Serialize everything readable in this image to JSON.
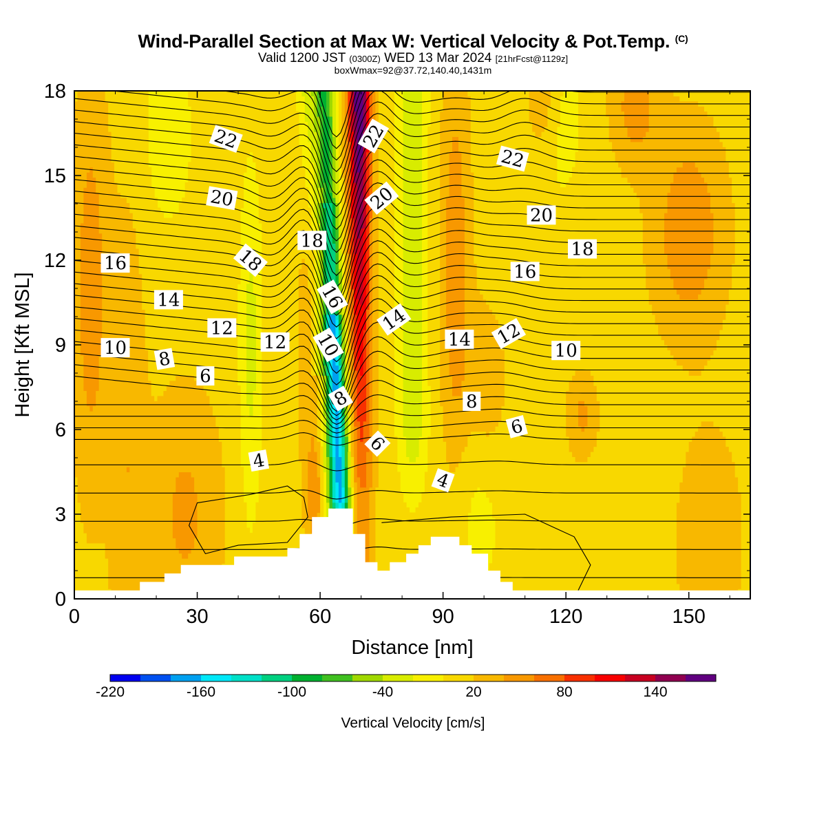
{
  "header": {
    "title": "Wind-Parallel Section at Max W: Vertical Velocity & Pot.Temp.",
    "title_mark": "(C)",
    "valid_prefix": "Valid 1200 JST",
    "valid_utc": "(0300Z)",
    "valid_date": "WED 13 Mar 2024",
    "forecast": "[21hrFcst@1129z]",
    "box_info": "boxWmax=92@37.72,140.40,1431m"
  },
  "chart_data": {
    "type": "heatmap",
    "title": "Wind-Parallel Section at Max W: Vertical Velocity & Pot.Temp.",
    "xlabel": "Distance [nm]",
    "ylabel": "Height [Kft MSL]",
    "xlim": [
      0,
      165
    ],
    "ylim": [
      0,
      18
    ],
    "x_ticks": [
      0,
      30,
      60,
      90,
      120,
      150
    ],
    "y_ticks": [
      0,
      3,
      6,
      9,
      12,
      15,
      18
    ],
    "colorbar": {
      "label": "Vertical Velocity [cm/s]",
      "tick_values": [
        -220,
        -160,
        -100,
        -40,
        20,
        80,
        140
      ],
      "bins": [
        -220,
        -200,
        -180,
        -160,
        -140,
        -120,
        -100,
        -80,
        -60,
        -40,
        -20,
        0,
        20,
        40,
        60,
        80,
        100,
        120,
        140,
        160,
        180
      ],
      "colors": [
        "#0000f0",
        "#0050f0",
        "#00a0f0",
        "#00e8f8",
        "#00e0c8",
        "#00d080",
        "#00b030",
        "#40c020",
        "#a0d800",
        "#d8ec00",
        "#f8f000",
        "#f8d800",
        "#f8b800",
        "#f89800",
        "#f87000",
        "#f83000",
        "#f80000",
        "#c80020",
        "#900050",
        "#600080"
      ]
    },
    "terrain_profile": [
      [
        0,
        0.3
      ],
      [
        16,
        0.3
      ],
      [
        16,
        0.6
      ],
      [
        22,
        0.6
      ],
      [
        22,
        0.9
      ],
      [
        26,
        0.9
      ],
      [
        26,
        1.2
      ],
      [
        39,
        1.2
      ],
      [
        39,
        1.5
      ],
      [
        52,
        1.5
      ],
      [
        52,
        1.8
      ],
      [
        55,
        1.8
      ],
      [
        55,
        2.3
      ],
      [
        58,
        2.3
      ],
      [
        58,
        2.9
      ],
      [
        62,
        2.9
      ],
      [
        62,
        3.2
      ],
      [
        68,
        3.2
      ],
      [
        68,
        2.3
      ],
      [
        71,
        2.3
      ],
      [
        71,
        1.3
      ],
      [
        74,
        1.3
      ],
      [
        74,
        1.0
      ],
      [
        77,
        1.0
      ],
      [
        77,
        1.3
      ],
      [
        81,
        1.3
      ],
      [
        81,
        1.6
      ],
      [
        84,
        1.6
      ],
      [
        84,
        1.9
      ],
      [
        87,
        1.9
      ],
      [
        87,
        2.2
      ],
      [
        94,
        2.2
      ],
      [
        94,
        1.9
      ],
      [
        97,
        1.9
      ],
      [
        97,
        1.6
      ],
      [
        101,
        1.6
      ],
      [
        101,
        1.0
      ],
      [
        104,
        1.0
      ],
      [
        104,
        0.6
      ],
      [
        107,
        0.6
      ],
      [
        107,
        0.3
      ],
      [
        165,
        0.3
      ]
    ],
    "theta_contours": {
      "label_values": [
        4,
        6,
        8,
        10,
        12,
        14,
        16,
        18,
        20,
        22
      ],
      "labels": [
        {
          "text": "4",
          "x": 45,
          "y": 4.9,
          "rot": -10
        },
        {
          "text": "4",
          "x": 90,
          "y": 4.2,
          "rot": 20
        },
        {
          "text": "6",
          "x": 32,
          "y": 7.9,
          "rot": 0
        },
        {
          "text": "6",
          "x": 74,
          "y": 5.5,
          "rot": 45
        },
        {
          "text": "6",
          "x": 108,
          "y": 6.1,
          "rot": -15
        },
        {
          "text": "8",
          "x": 22,
          "y": 8.5,
          "rot": -10
        },
        {
          "text": "8",
          "x": 65,
          "y": 7.1,
          "rot": -30
        },
        {
          "text": "8",
          "x": 97,
          "y": 7.0,
          "rot": 0
        },
        {
          "text": "10",
          "x": 10,
          "y": 8.9,
          "rot": 0
        },
        {
          "text": "10",
          "x": 62,
          "y": 9.0,
          "rot": 60
        },
        {
          "text": "10",
          "x": 120,
          "y": 8.8,
          "rot": 0
        },
        {
          "text": "12",
          "x": 36,
          "y": 9.6,
          "rot": 0
        },
        {
          "text": "12",
          "x": 49,
          "y": 9.1,
          "rot": 0
        },
        {
          "text": "12",
          "x": 106,
          "y": 9.4,
          "rot": -30
        },
        {
          "text": "14",
          "x": 23,
          "y": 10.6,
          "rot": 0
        },
        {
          "text": "14",
          "x": 78,
          "y": 9.9,
          "rot": -35
        },
        {
          "text": "14",
          "x": 94,
          "y": 9.2,
          "rot": 0
        },
        {
          "text": "16",
          "x": 10,
          "y": 11.9,
          "rot": 0
        },
        {
          "text": "16",
          "x": 63,
          "y": 10.7,
          "rot": 60
        },
        {
          "text": "16",
          "x": 110,
          "y": 11.6,
          "rot": 0
        },
        {
          "text": "18",
          "x": 43,
          "y": 12.0,
          "rot": 40
        },
        {
          "text": "18",
          "x": 58,
          "y": 12.7,
          "rot": 0
        },
        {
          "text": "18",
          "x": 124,
          "y": 12.4,
          "rot": 0
        },
        {
          "text": "20",
          "x": 36,
          "y": 14.2,
          "rot": 10
        },
        {
          "text": "20",
          "x": 75,
          "y": 14.2,
          "rot": -40
        },
        {
          "text": "20",
          "x": 114,
          "y": 13.6,
          "rot": 0
        },
        {
          "text": "22",
          "x": 37,
          "y": 16.3,
          "rot": 20
        },
        {
          "text": "22",
          "x": 73,
          "y": 16.4,
          "rot": -60
        },
        {
          "text": "22",
          "x": 107,
          "y": 15.6,
          "rot": 15
        }
      ]
    },
    "vv_features": {
      "downdraft_center": {
        "x": 64,
        "y": 8.0,
        "min": -180
      },
      "updraft_center": {
        "x": 73,
        "y": 15.0,
        "max": 160
      },
      "box_w_max": 92
    }
  }
}
